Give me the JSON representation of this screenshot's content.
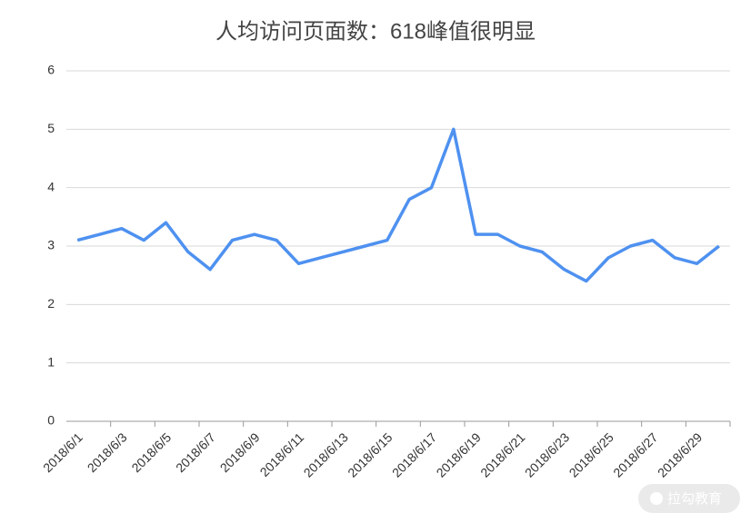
{
  "chart_data": {
    "type": "line",
    "title": "人均访问页面数：618峰值很明显",
    "categories": [
      "2018/6/1",
      null,
      "2018/6/3",
      null,
      "2018/6/5",
      null,
      "2018/6/7",
      null,
      "2018/6/9",
      null,
      "2018/6/11",
      null,
      "2018/6/13",
      null,
      "2018/6/15",
      null,
      "2018/6/17",
      null,
      "2018/6/19",
      null,
      "2018/6/21",
      null,
      "2018/6/23",
      null,
      "2018/6/25",
      null,
      "2018/6/27",
      null,
      "2018/6/29",
      null
    ],
    "series": [
      {
        "color": "#4e91f0",
        "values": [
          3.1,
          3.2,
          3.3,
          3.1,
          3.4,
          2.9,
          2.6,
          3.1,
          3.2,
          3.1,
          2.7,
          2.8,
          2.9,
          3.0,
          3.1,
          3.8,
          4.0,
          5.0,
          3.2,
          3.2,
          3.0,
          2.9,
          2.6,
          2.4,
          2.8,
          3.0,
          3.1,
          2.8,
          2.7,
          3.0
        ]
      }
    ],
    "ylim": [
      0,
      6
    ],
    "yticks": [
      0,
      1,
      2,
      3,
      4,
      5,
      6
    ],
    "grid": true,
    "watermark": "拉勾教育"
  }
}
